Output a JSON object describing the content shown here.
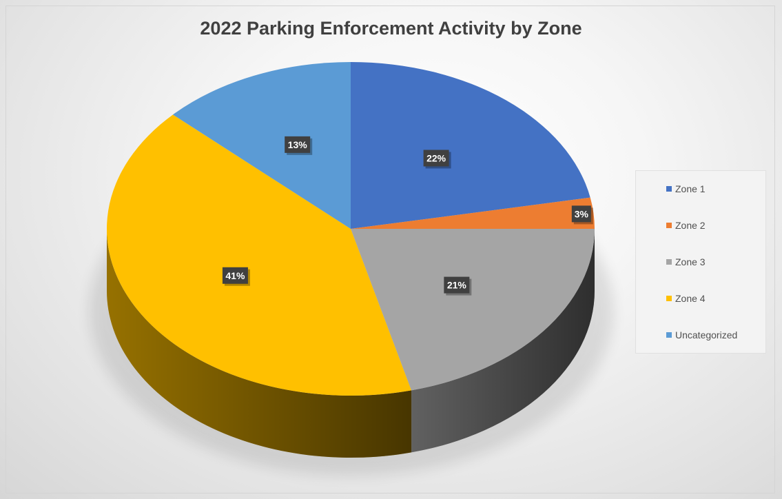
{
  "chart_data": {
    "type": "pie",
    "title": "2022 Parking Enforcement Activity by Zone",
    "categories": [
      "Zone 1",
      "Zone 2",
      "Zone 3",
      "Zone 4",
      "Uncategorized"
    ],
    "values": [
      22,
      3,
      21,
      41,
      13
    ],
    "data_labels": [
      "22%",
      "3%",
      "21%",
      "41%",
      "13%"
    ],
    "colors": [
      "#4472c4",
      "#ed7d31",
      "#a5a5a5",
      "#ffc000",
      "#5b9bd5"
    ],
    "legend_position": "right",
    "three_d": true
  }
}
